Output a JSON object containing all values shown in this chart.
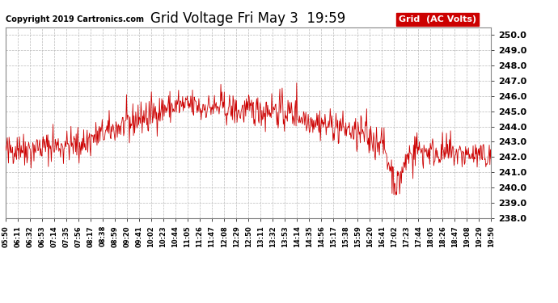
{
  "title": "Grid Voltage Fri May 3  19:59",
  "copyright": "Copyright 2019 Cartronics.com",
  "legend_label": "Grid  (AC Volts)",
  "legend_bg": "#cc0000",
  "legend_text_color": "#ffffff",
  "line_color": "#cc0000",
  "bg_color": "#ffffff",
  "plot_bg": "#ffffff",
  "grid_color": "#bbbbbb",
  "ylim": [
    238.0,
    250.5
  ],
  "yticks": [
    238.0,
    239.0,
    240.0,
    241.0,
    242.0,
    243.0,
    244.0,
    245.0,
    246.0,
    247.0,
    248.0,
    249.0,
    250.0
  ],
  "xtick_labels": [
    "05:50",
    "06:11",
    "06:32",
    "06:53",
    "07:14",
    "07:35",
    "07:56",
    "08:17",
    "08:38",
    "08:59",
    "09:20",
    "09:41",
    "10:02",
    "10:23",
    "10:44",
    "11:05",
    "11:26",
    "11:47",
    "12:08",
    "12:29",
    "12:50",
    "13:11",
    "13:32",
    "13:53",
    "14:14",
    "14:35",
    "14:56",
    "15:17",
    "15:38",
    "15:59",
    "16:20",
    "16:41",
    "17:02",
    "17:23",
    "17:44",
    "18:05",
    "18:26",
    "18:47",
    "19:08",
    "19:29",
    "19:50"
  ],
  "seed": 42,
  "n_points": 840,
  "title_fontsize": 12,
  "tick_fontsize": 8,
  "xtick_fontsize": 6,
  "copyright_fontsize": 7
}
